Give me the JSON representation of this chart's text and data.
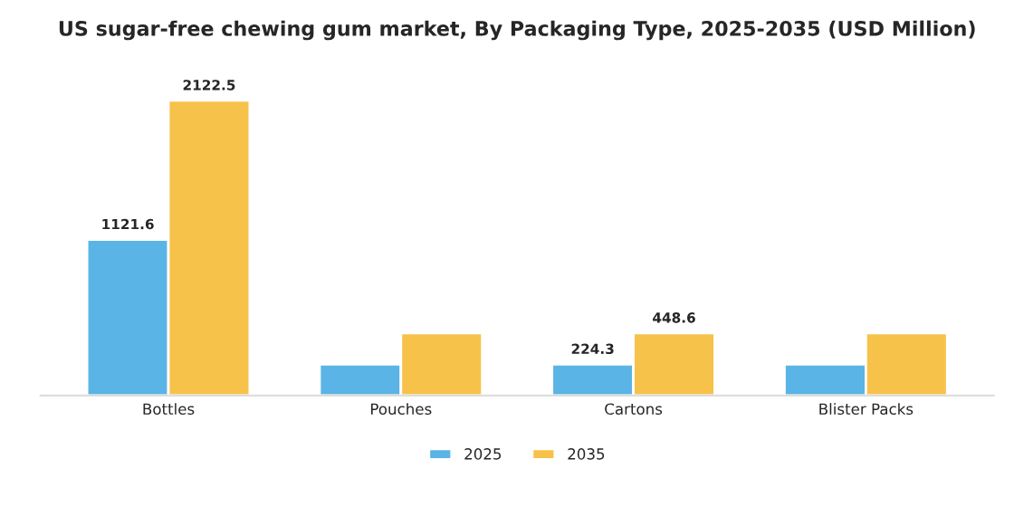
{
  "chart_data": {
    "type": "bar",
    "title": "US sugar-free chewing gum market, By Packaging Type, 2025-2035 (USD Million)",
    "categories": [
      "Bottles",
      "Pouches",
      "Cartons",
      "Blister Packs"
    ],
    "series": [
      {
        "name": "2025",
        "color": "#5ab4e5",
        "values": [
          1121.6,
          224,
          224.3,
          224
        ],
        "value_labels": [
          "1121.6",
          null,
          "224.3",
          null
        ]
      },
      {
        "name": "2035",
        "color": "#f7c24a",
        "values": [
          2122.5,
          449,
          448.6,
          449
        ],
        "value_labels": [
          "2122.5",
          null,
          "448.6",
          null
        ]
      }
    ],
    "tick_labels": "x",
    "legend": "bottom",
    "grid": false
  }
}
